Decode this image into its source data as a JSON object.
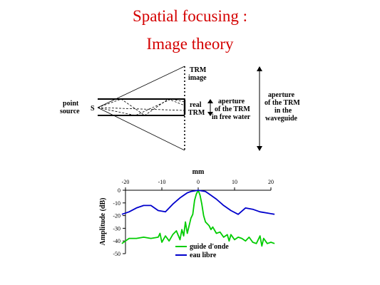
{
  "slide": {
    "title_line1": "Spatial focusing :",
    "title_line2": "Image theory",
    "title_color": "#d40000"
  },
  "diagram": {
    "point_source_line1": "point",
    "point_source_line2": "source",
    "source_letter": "S",
    "trm_image_line1": "TRM",
    "trm_image_line2": "image",
    "real_trm_line1": "real",
    "real_trm_line2": "TRM",
    "aperture_free_line1": "aperture",
    "aperture_free_line2": "of the TRM",
    "aperture_free_line3": "in free water",
    "aperture_wg_line1": "aperture",
    "aperture_wg_line2": "of the TRM",
    "aperture_wg_line3": "in the",
    "aperture_wg_line4": "waveguide"
  },
  "chart_data": {
    "type": "line",
    "title": "",
    "xlabel": "mm",
    "ylabel": "Amplitude (dB)",
    "xlim": [
      -20,
      20
    ],
    "ylim": [
      -50,
      0
    ],
    "xticks": [
      -20,
      -10,
      0,
      10,
      20
    ],
    "yticks": [
      0,
      -10,
      -20,
      -30,
      -40,
      -50
    ],
    "series": [
      {
        "name": "guide d'onde",
        "color": "#00cc00",
        "x": [
          -21,
          -19,
          -17,
          -15,
          -13,
          -11,
          -10.5,
          -10,
          -9,
          -8,
          -7,
          -6,
          -5,
          -4.5,
          -4,
          -3.5,
          -3,
          -2,
          -1.5,
          -1,
          -0.5,
          0,
          0.5,
          1,
          1.5,
          2,
          3,
          3.5,
          4,
          5,
          6,
          7,
          8,
          8.5,
          9,
          10,
          11,
          12,
          13,
          14,
          15,
          16,
          17,
          17.5,
          18,
          19,
          20,
          21
        ],
        "y": [
          -42,
          -38,
          -38,
          -37,
          -38,
          -37,
          -34,
          -41,
          -36,
          -40,
          -35,
          -32,
          -39,
          -31,
          -36,
          -25,
          -34,
          -22,
          -19,
          -8,
          -3,
          0,
          -4,
          -11,
          -20,
          -25,
          -28,
          -31,
          -29,
          -34,
          -33,
          -37,
          -35,
          -40,
          -35,
          -39,
          -37,
          -38,
          -40,
          -37,
          -41,
          -42,
          -36,
          -44,
          -38,
          -42,
          -41,
          -42
        ]
      },
      {
        "name": "eau libre",
        "color": "#0000cc",
        "x": [
          -21,
          -19,
          -17,
          -15,
          -13,
          -11,
          -9,
          -7,
          -5,
          -3,
          -2,
          -1,
          0,
          1,
          2,
          3,
          5,
          7,
          9,
          11,
          13,
          15,
          17,
          19,
          21
        ],
        "y": [
          -19,
          -17,
          -14,
          -12,
          -12,
          -16,
          -17,
          -11,
          -6,
          -2,
          -1,
          -0.5,
          0,
          -0.5,
          -1,
          -3,
          -7,
          -12,
          -16,
          -19,
          -14,
          -15,
          -17,
          -18,
          -19
        ]
      }
    ],
    "legend_position": "bottom-center"
  }
}
